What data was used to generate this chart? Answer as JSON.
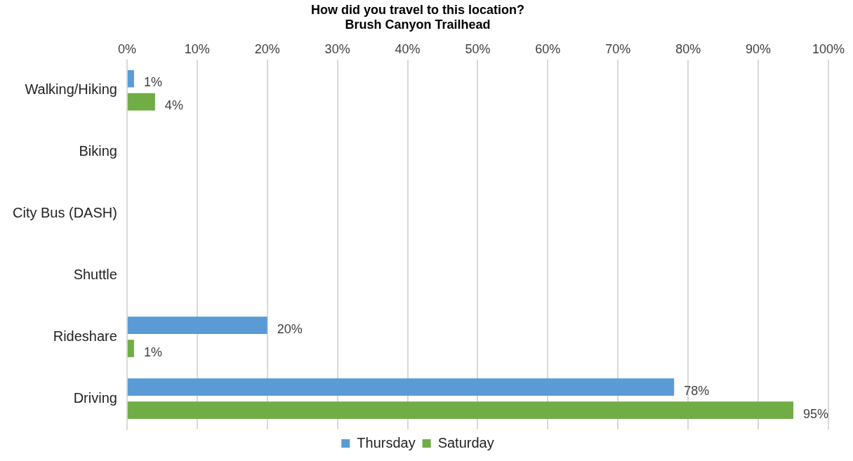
{
  "chart_data": {
    "type": "bar",
    "orientation": "horizontal",
    "title": "How did you travel to this location?",
    "subtitle": "Brush Canyon Trailhead",
    "categories": [
      "Walking/Hiking",
      "Biking",
      "City Bus (DASH)",
      "Shuttle",
      "Rideshare",
      "Driving"
    ],
    "series": [
      {
        "name": "Thursday",
        "color": "#5b9bd5",
        "values": [
          1,
          null,
          null,
          null,
          20,
          78
        ],
        "value_labels": [
          "1%",
          null,
          null,
          null,
          "20%",
          "78%"
        ]
      },
      {
        "name": "Saturday",
        "color": "#70ad47",
        "values": [
          4,
          null,
          null,
          null,
          1,
          95
        ],
        "value_labels": [
          "4%",
          null,
          null,
          null,
          "1%",
          "95%"
        ]
      }
    ],
    "xlim": [
      0,
      100
    ],
    "xticks": [
      {
        "value": 0,
        "label": "0%"
      },
      {
        "value": 10,
        "label": "10%"
      },
      {
        "value": 20,
        "label": "20%"
      },
      {
        "value": 30,
        "label": "30%"
      },
      {
        "value": 40,
        "label": "40%"
      },
      {
        "value": 50,
        "label": "50%"
      },
      {
        "value": 60,
        "label": "60%"
      },
      {
        "value": 70,
        "label": "70%"
      },
      {
        "value": 80,
        "label": "80%"
      },
      {
        "value": 90,
        "label": "90%"
      },
      {
        "value": 100,
        "label": "100%"
      }
    ],
    "grid": "x",
    "legend": "bottom"
  }
}
